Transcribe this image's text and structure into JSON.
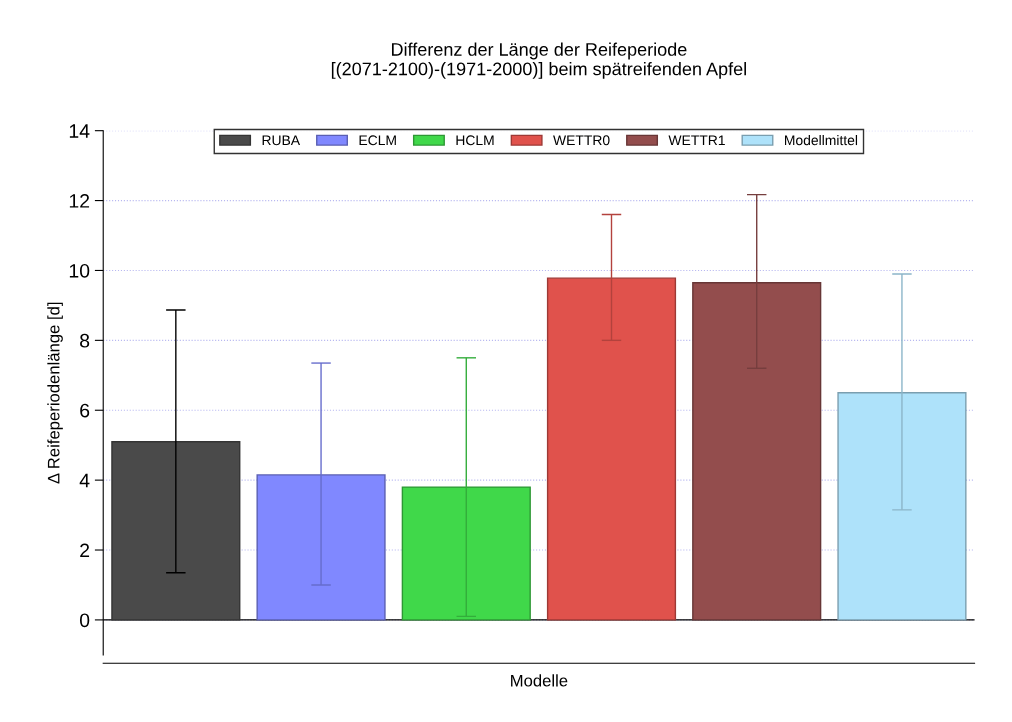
{
  "chart_data": {
    "type": "bar",
    "title": "Differenz der Länge der Reifeperiode\n[(2071-2100)-(1971-2000)] beim spätreifenden Apfel",
    "xlabel": "Modelle",
    "ylabel": "Δ Reifeperiodenlänge [d]",
    "categories": [
      null,
      null,
      null,
      null,
      null,
      null
    ],
    "series": [
      {
        "name": "RUBA",
        "color": "#4a4a4a",
        "values": [
          5.1,
          null,
          null,
          null,
          null,
          null
        ],
        "errors": [
          [
            1.35,
            8.87
          ],
          null,
          null,
          null,
          null,
          null
        ]
      },
      {
        "name": "ECLM",
        "color": "#8088ff",
        "values": [
          null,
          4.15,
          null,
          null,
          null,
          null
        ],
        "errors": [
          null,
          [
            1.0,
            7.35
          ],
          null,
          null,
          null,
          null
        ]
      },
      {
        "name": "HCLM",
        "color": "#40d84a",
        "values": [
          null,
          null,
          3.8,
          null,
          null,
          null
        ],
        "errors": [
          null,
          null,
          [
            0.1,
            7.5
          ],
          null,
          null,
          null
        ]
      },
      {
        "name": "WETTR0",
        "color": "#e0524c",
        "values": [
          null,
          null,
          null,
          9.78,
          null,
          null
        ],
        "errors": [
          null,
          null,
          null,
          [
            8.0,
            11.6
          ],
          null,
          null
        ]
      },
      {
        "name": "WETTR1",
        "color": "#934d4d",
        "values": [
          null,
          null,
          null,
          null,
          9.65,
          null
        ],
        "errors": [
          null,
          null,
          null,
          null,
          [
            7.2,
            12.17
          ],
          null
        ]
      },
      {
        "name": "Modellmittel",
        "color": "#aee2fa",
        "values": [
          null,
          null,
          null,
          null,
          null,
          6.5
        ],
        "errors": [
          null,
          null,
          null,
          null,
          null,
          [
            3.15,
            9.9
          ]
        ]
      }
    ],
    "ylim": [
      -1,
      14
    ],
    "yticks": [
      0,
      2,
      4,
      6,
      8,
      10,
      12,
      14
    ],
    "grid": "y",
    "legend": "top",
    "tick_labels": "y",
    "ref_lines": [
      {
        "axis": "y",
        "value": 0,
        "color": "#000000"
      }
    ]
  }
}
